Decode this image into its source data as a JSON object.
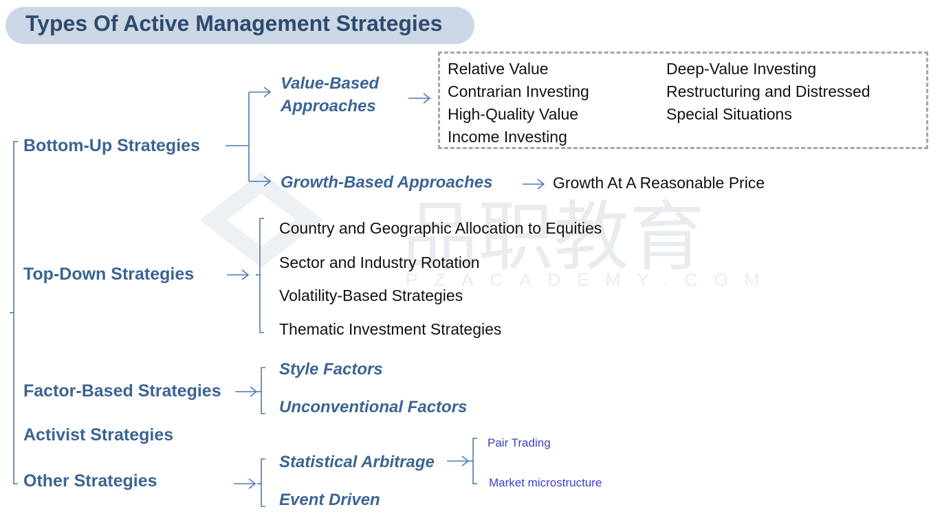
{
  "title": "Types Of Active Management Strategies",
  "watermark": {
    "cn": "品职教育",
    "en": "PZACADEMY.COM"
  },
  "colors": {
    "main": "#3b6494",
    "title_bg": "#ccd8e6",
    "title_text": "#2e4a6e",
    "leaf": "#111111",
    "small": "#3a3fc2",
    "line": "#4a78b5"
  },
  "bottom_up": {
    "label": "Bottom-Up Strategies",
    "value_based": {
      "label_line1": "Value-Based",
      "label_line2": "Approaches",
      "items": [
        "Relative Value",
        "Contrarian Investing",
        "High-Quality Value",
        "Income Investing",
        "Deep-Value Investing",
        "Restructuring and Distressed",
        "Special Situations"
      ]
    },
    "growth_based": {
      "label": "Growth-Based Approaches",
      "item": "Growth At A Reasonable Price"
    }
  },
  "top_down": {
    "label": "Top-Down Strategies",
    "items": [
      "Country and Geographic Allocation to Equities",
      "Sector and Industry Rotation",
      "Volatility-Based Strategies",
      "Thematic Investment Strategies"
    ]
  },
  "factor_based": {
    "label": "Factor-Based Strategies",
    "items": [
      "Style Factors",
      "Unconventional Factors"
    ]
  },
  "activist": {
    "label": "Activist Strategies"
  },
  "other": {
    "label": "Other Strategies",
    "statistical_arbitrage": {
      "label": "Statistical Arbitrage",
      "items": [
        "Pair Trading",
        "Market microstructure"
      ]
    },
    "event_driven": {
      "label": "Event Driven"
    }
  }
}
